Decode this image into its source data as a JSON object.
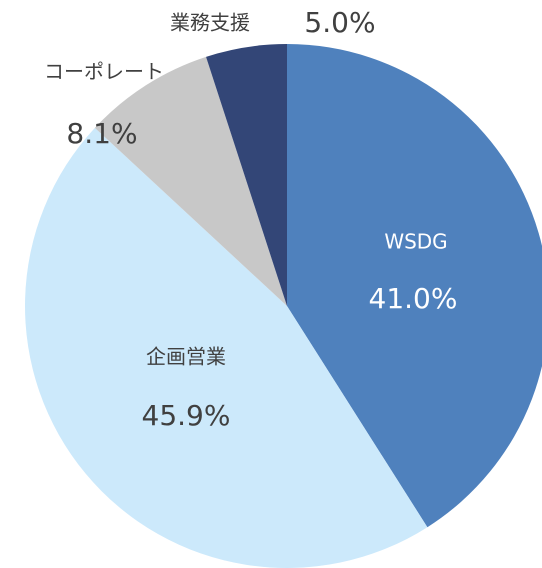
{
  "chart_data": {
    "type": "pie",
    "categories": [
      "WSDG",
      "企画営業",
      "コーポレート",
      "業務支援"
    ],
    "values": [
      41.0,
      45.9,
      8.1,
      5.0
    ],
    "value_labels": [
      "41.0%",
      "45.9%",
      "8.1%",
      "5.0%"
    ],
    "colors": [
      "#4f81bd",
      "#cce9fb",
      "#c8c8c8",
      "#334677"
    ]
  }
}
